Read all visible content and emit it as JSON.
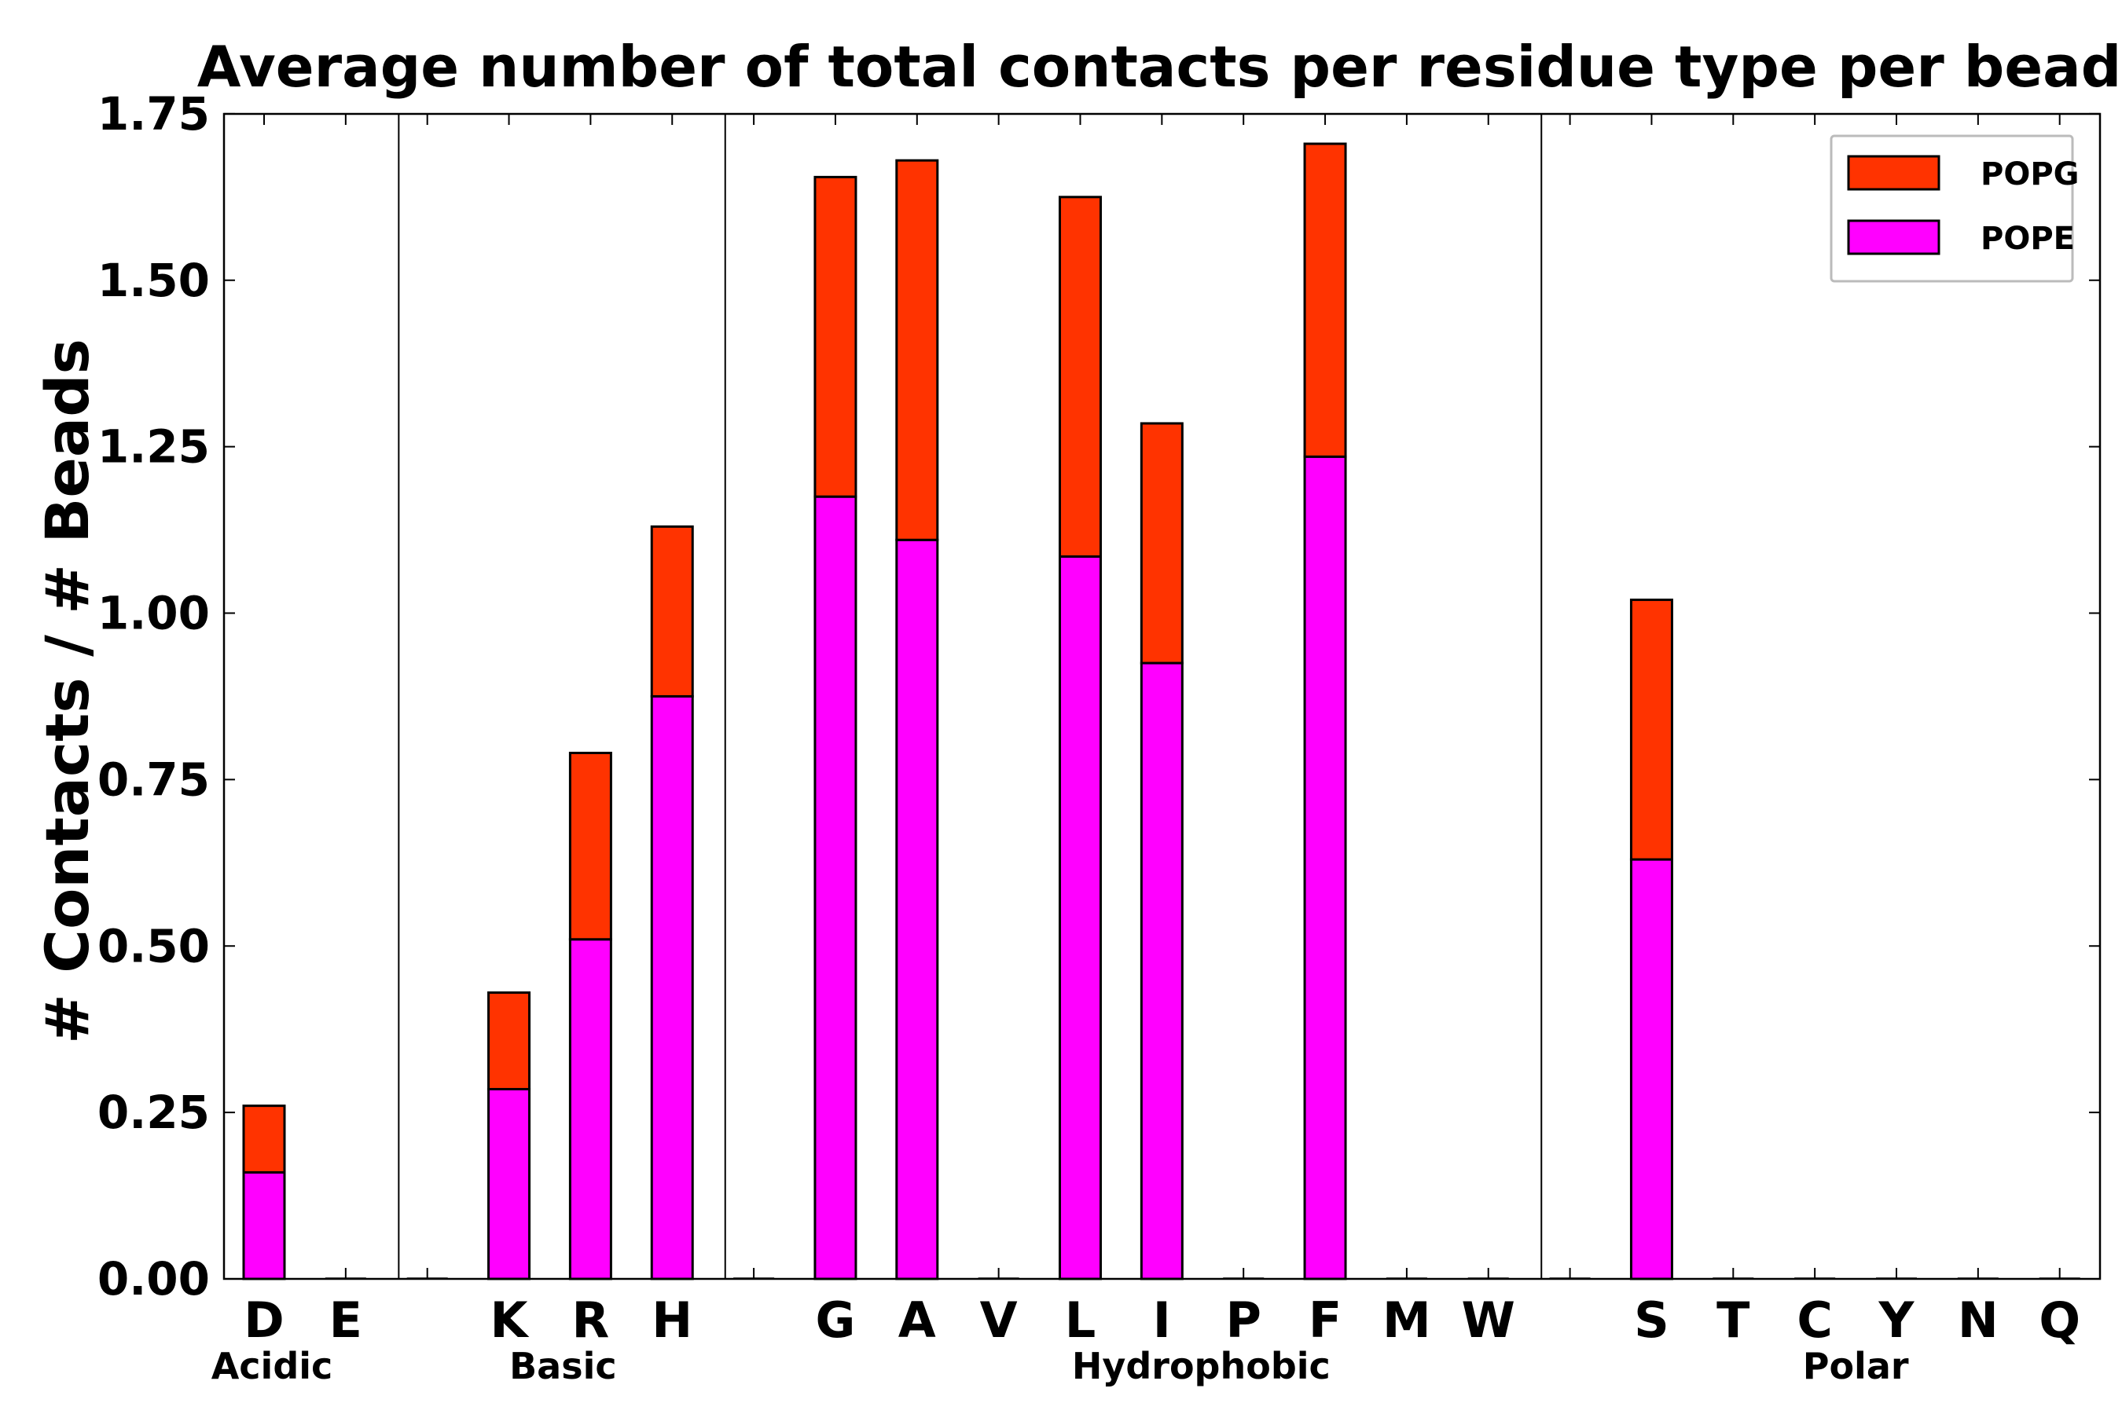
{
  "chart_data": {
    "type": "bar",
    "stacked": true,
    "title": "Average number of total contacts per residue type per bead",
    "xlabel": "",
    "ylabel": "# Contacts / # Beads",
    "ylim": [
      0,
      1.75
    ],
    "yticks": [
      0.0,
      0.25,
      0.5,
      0.75,
      1.0,
      1.25,
      1.5,
      1.75
    ],
    "ytick_labels": [
      "0.00",
      "0.25",
      "0.50",
      "0.75",
      "1.00",
      "1.25",
      "1.50",
      "1.75"
    ],
    "grid": false,
    "legend_position": "top-right",
    "slots": [
      "D",
      "E",
      "",
      "K",
      "R",
      "H",
      "",
      "G",
      "A",
      "V",
      "L",
      "I",
      "P",
      "F",
      "M",
      "W",
      "",
      "S",
      "T",
      "C",
      "Y",
      "N",
      "Q"
    ],
    "categories": [
      "D",
      "E",
      "K",
      "R",
      "H",
      "G",
      "A",
      "V",
      "L",
      "I",
      "P",
      "F",
      "M",
      "W",
      "S",
      "T",
      "C",
      "Y",
      "N",
      "Q"
    ],
    "series": [
      {
        "name": "POPE",
        "color": "#ff00ff",
        "values": [
          0.16,
          0,
          0.285,
          0.51,
          0.875,
          1.175,
          1.11,
          0,
          1.085,
          0.925,
          0,
          1.235,
          0,
          0,
          0.63,
          0,
          0,
          0,
          0,
          0
        ]
      },
      {
        "name": "POPG",
        "color": "#ff3300",
        "values": [
          0.1,
          0,
          0.145,
          0.28,
          0.255,
          0.48,
          0.57,
          0,
          0.54,
          0.36,
          0,
          0.47,
          0,
          0,
          0.39,
          0,
          0,
          0,
          0,
          0
        ]
      }
    ],
    "groups": [
      {
        "name": "Acidic",
        "start_slot": 0,
        "end_slot": 1
      },
      {
        "name": "Basic",
        "start_slot": 3,
        "end_slot": 5
      },
      {
        "name": "Hydrophobic",
        "start_slot": 7,
        "end_slot": 15
      },
      {
        "name": "Polar",
        "start_slot": 17,
        "end_slot": 22
      }
    ],
    "separator_slots": [
      2,
      6,
      16
    ],
    "legend": [
      {
        "name": "POPG",
        "color": "#ff3300"
      },
      {
        "name": "POPE",
        "color": "#ff00ff"
      }
    ]
  }
}
